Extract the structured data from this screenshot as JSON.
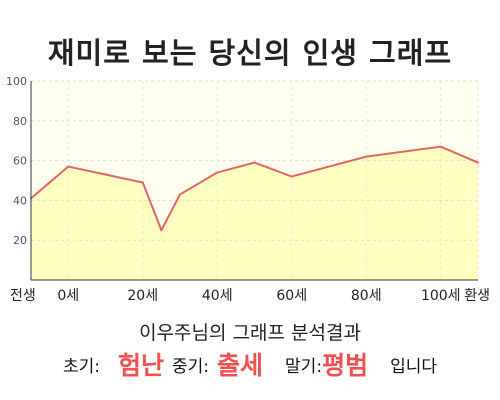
{
  "title": "재미로 보는 당신의 인생 그래프",
  "chart_data": {
    "type": "area",
    "x": [
      -10,
      0,
      10,
      20,
      25,
      30,
      40,
      50,
      60,
      70,
      80,
      100,
      110
    ],
    "y": [
      41,
      57,
      53,
      49,
      25,
      43,
      54,
      59,
      52,
      57,
      62,
      67,
      59
    ],
    "xlim": [
      -10,
      110
    ],
    "ylim": [
      0,
      100
    ],
    "yticks": [
      20,
      40,
      60,
      80,
      100
    ],
    "xtick_values": [
      -10,
      0,
      20,
      40,
      60,
      80,
      100,
      110
    ],
    "xtick_labels": [
      "전생",
      "0세",
      "20세",
      "40세",
      "60세",
      "80세",
      "100세",
      "환생"
    ],
    "grid": true,
    "line_color": "#e06666",
    "fill_color": "#ffffc0",
    "plot_background": "#fffff0"
  },
  "result": {
    "heading": "이우주님의 그래프 분석결과",
    "early_label": "초기:",
    "early_value": "험난",
    "middle_label": "중기:",
    "middle_value": "출세",
    "late_label": "말기:",
    "late_value": "평범",
    "ending": "입니다",
    "highlight_color": "#f05050"
  }
}
